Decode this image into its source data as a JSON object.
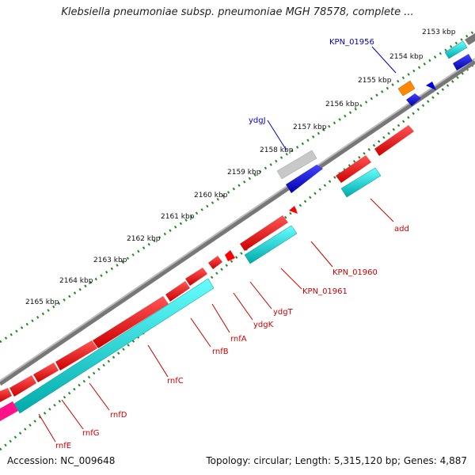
{
  "header": {
    "title": "Klebsiella pneumoniae subsp. pneumoniae MGH 78578, complete ..."
  },
  "footer": {
    "accession": "Accession: NC_009648",
    "summary": "Topology: circular; Length: 5,315,120 bp; Genes: 4,887"
  },
  "ruler": {
    "ticks": [
      "2153 kbp",
      "2154 kbp",
      "2155 kbp",
      "2156 kbp",
      "2157 kbp",
      "2158 kbp",
      "2159 kbp",
      "2160 kbp",
      "2161 kbp",
      "2162 kbp",
      "2163 kbp",
      "2164 kbp",
      "2165 kbp"
    ]
  },
  "genes": {
    "labels": [
      "KPN_01956",
      "ydgJ",
      "add",
      "KPN_01960",
      "KPN_01961",
      "ydgT",
      "ydgK",
      "rnfA",
      "rnfB",
      "rnfC",
      "rnfD",
      "rnfG",
      "rnfE"
    ]
  },
  "colors": {
    "forward_cds": "#ff0000",
    "reverse_cds": "#0000ff",
    "cds_tracks": "#00e0e0",
    "label_forward": "#cc0000",
    "label_reverse": "#0000cc",
    "backbone": "#888888",
    "ruler_dots": "#228822"
  }
}
